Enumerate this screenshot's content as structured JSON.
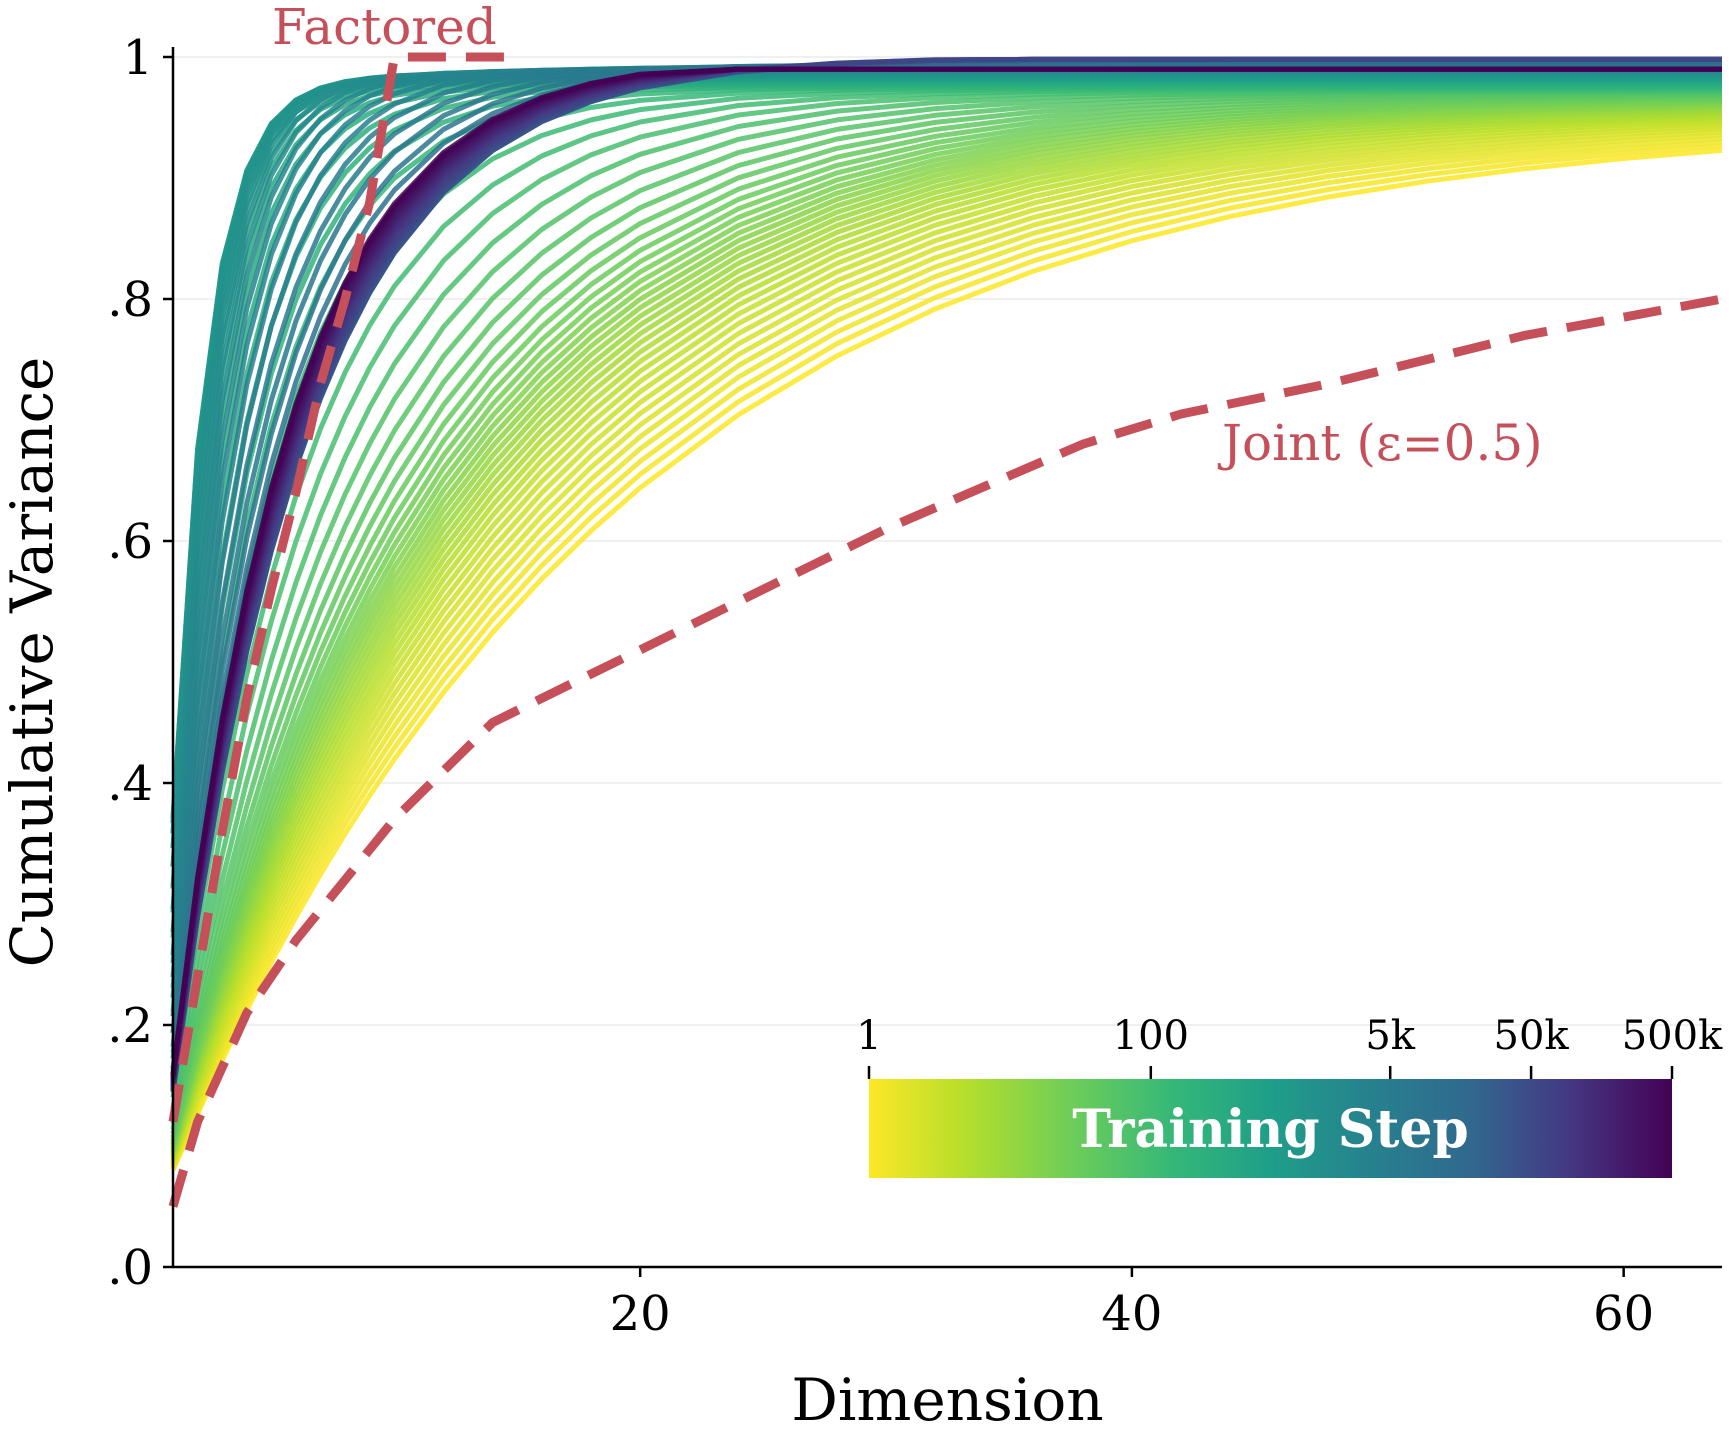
{
  "chart_data": {
    "type": "line",
    "xlabel": "Dimension",
    "ylabel": "Cumulative Variance",
    "xlim": [
      1,
      64
    ],
    "ylim": [
      0,
      1.0
    ],
    "x_ticks": [
      {
        "value": 20,
        "label": "20"
      },
      {
        "value": 40,
        "label": "40"
      },
      {
        "value": 60,
        "label": "60"
      }
    ],
    "y_ticks": [
      {
        "value": 0.0,
        "label": ".0"
      },
      {
        "value": 0.2,
        "label": ".2"
      },
      {
        "value": 0.4,
        "label": ".4"
      },
      {
        "value": 0.6,
        "label": ".6"
      },
      {
        "value": 0.8,
        "label": ".8"
      },
      {
        "value": 1.0,
        "label": "1"
      }
    ],
    "grid": "horizontal",
    "colormap": "viridis (reversed: yellow = early, dark purple = late)",
    "reference_series": [
      {
        "name": "Factored",
        "style": "dashed",
        "color": "#c5505a",
        "x": [
          1,
          2,
          3,
          4,
          5,
          6,
          7,
          8,
          9,
          10,
          11,
          12,
          13,
          14,
          15
        ],
        "y": [
          0.12,
          0.24,
          0.36,
          0.47,
          0.56,
          0.64,
          0.73,
          0.8,
          0.88,
          1.0,
          1.0,
          1.0,
          1.0,
          1.0,
          1.0
        ]
      },
      {
        "name": "Joint (ε=0.5)",
        "style": "dashed",
        "color": "#c5505a",
        "x": [
          1,
          2,
          4,
          6,
          8,
          10,
          14,
          18,
          24,
          30,
          38,
          42,
          48,
          56,
          64
        ],
        "y": [
          0.05,
          0.12,
          0.21,
          0.27,
          0.32,
          0.37,
          0.45,
          0.49,
          0.55,
          0.61,
          0.68,
          0.705,
          0.73,
          0.77,
          0.8
        ]
      }
    ],
    "training_step_curves": {
      "count": 90,
      "x": [
        1,
        2,
        3,
        4,
        5,
        6,
        7,
        8,
        9,
        10,
        12,
        14,
        16,
        18,
        20,
        24,
        28,
        32,
        36,
        40,
        44,
        48,
        52,
        56,
        60,
        64
      ],
      "early_curve_y_at_64": 0.95,
      "late_curve_y_at_64": 0.99,
      "note": "one curve per training step; early steps rise slowly, mid steps saturate fastest, late steps settle between"
    },
    "colorbar": {
      "title": "Training Step",
      "scale": "log",
      "ticks": [
        {
          "value": 1,
          "label": "1"
        },
        {
          "value": 100,
          "label": "100"
        },
        {
          "value": 5000,
          "label": "5k"
        },
        {
          "value": 50000,
          "label": "50k"
        },
        {
          "value": 500000,
          "label": "500k"
        }
      ],
      "range": [
        1,
        500000
      ]
    },
    "annotations": [
      {
        "text": "Factored",
        "color": "#c5505a"
      },
      {
        "text": "Joint (ε=0.5)",
        "color": "#c5505a"
      }
    ]
  }
}
